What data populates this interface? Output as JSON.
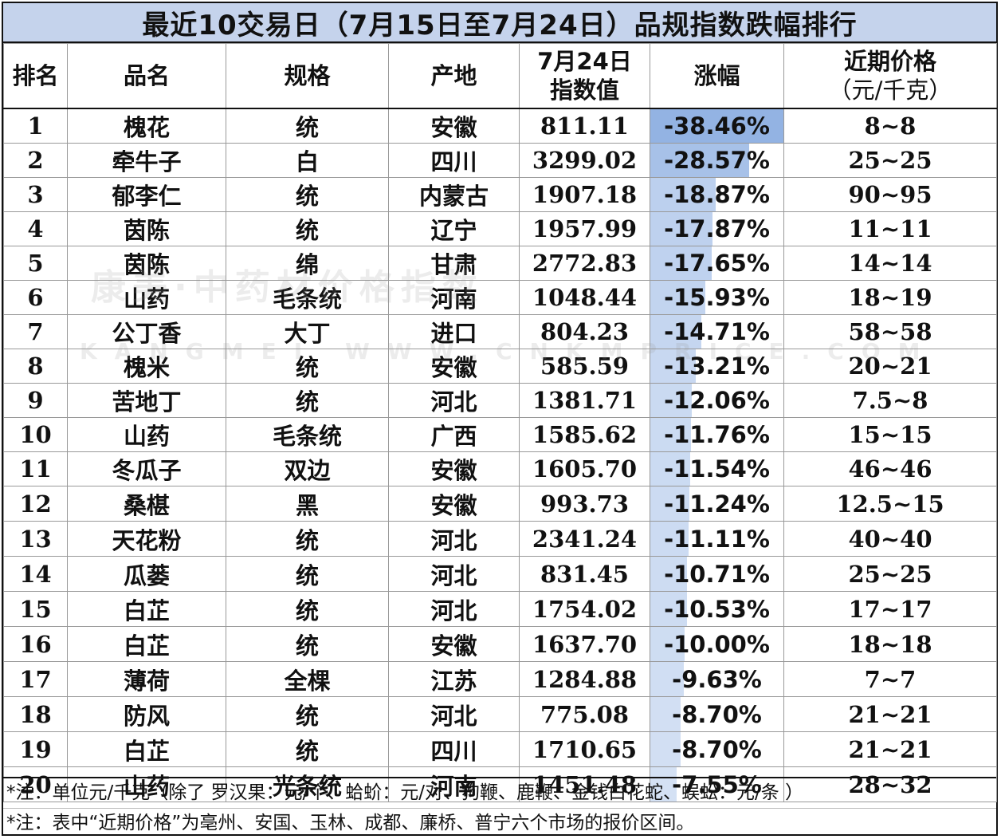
{
  "title": "最近10交易日（7月15日至7月24日）品规指数跌幅排行",
  "headers": {
    "rank": "排名",
    "name": "品名",
    "spec": "规格",
    "origin": "产地",
    "index_line1": "7月24日",
    "index_line2": "指数值",
    "change": "涨幅",
    "price_line1": "近期价格",
    "price_line2": "（元/千克）"
  },
  "rows": [
    {
      "rank": "1",
      "name": "槐花",
      "spec": "统",
      "origin": "安徽",
      "index": "811.11",
      "change": "-38.46%",
      "change_value": -38.46,
      "price": "8~8"
    },
    {
      "rank": "2",
      "name": "牵牛子",
      "spec": "白",
      "origin": "四川",
      "index": "3299.02",
      "change": "-28.57%",
      "change_value": -28.57,
      "price": "25~25"
    },
    {
      "rank": "3",
      "name": "郁李仁",
      "spec": "统",
      "origin": "内蒙古",
      "index": "1907.18",
      "change": "-18.87%",
      "change_value": -18.87,
      "price": "90~95"
    },
    {
      "rank": "4",
      "name": "茵陈",
      "spec": "统",
      "origin": "辽宁",
      "index": "1957.99",
      "change": "-17.87%",
      "change_value": -17.87,
      "price": "11~11"
    },
    {
      "rank": "5",
      "name": "茵陈",
      "spec": "绵",
      "origin": "甘肃",
      "index": "2772.83",
      "change": "-17.65%",
      "change_value": -17.65,
      "price": "14~14"
    },
    {
      "rank": "6",
      "name": "山药",
      "spec": "毛条统",
      "origin": "河南",
      "index": "1048.44",
      "change": "-15.93%",
      "change_value": -15.93,
      "price": "18~19"
    },
    {
      "rank": "7",
      "name": "公丁香",
      "spec": "大丁",
      "origin": "进口",
      "index": "804.23",
      "change": "-14.71%",
      "change_value": -14.71,
      "price": "58~58"
    },
    {
      "rank": "8",
      "name": "槐米",
      "spec": "统",
      "origin": "安徽",
      "index": "585.59",
      "change": "-13.21%",
      "change_value": -13.21,
      "price": "20~21"
    },
    {
      "rank": "9",
      "name": "苦地丁",
      "spec": "统",
      "origin": "河北",
      "index": "1381.71",
      "change": "-12.06%",
      "change_value": -12.06,
      "price": "7.5~8"
    },
    {
      "rank": "10",
      "name": "山药",
      "spec": "毛条统",
      "origin": "广西",
      "index": "1585.62",
      "change": "-11.76%",
      "change_value": -11.76,
      "price": "15~15"
    },
    {
      "rank": "11",
      "name": "冬瓜子",
      "spec": "双边",
      "origin": "安徽",
      "index": "1605.70",
      "change": "-11.54%",
      "change_value": -11.54,
      "price": "46~46"
    },
    {
      "rank": "12",
      "name": "桑椹",
      "spec": "黑",
      "origin": "安徽",
      "index": "993.73",
      "change": "-11.24%",
      "change_value": -11.24,
      "price": "12.5~15"
    },
    {
      "rank": "13",
      "name": "天花粉",
      "spec": "统",
      "origin": "河北",
      "index": "2341.24",
      "change": "-11.11%",
      "change_value": -11.11,
      "price": "40~40"
    },
    {
      "rank": "14",
      "name": "瓜蒌",
      "spec": "统",
      "origin": "河北",
      "index": "831.45",
      "change": "-10.71%",
      "change_value": -10.71,
      "price": "25~25"
    },
    {
      "rank": "15",
      "name": "白芷",
      "spec": "统",
      "origin": "河北",
      "index": "1754.02",
      "change": "-10.53%",
      "change_value": -10.53,
      "price": "17~17"
    },
    {
      "rank": "16",
      "name": "白芷",
      "spec": "统",
      "origin": "安徽",
      "index": "1637.70",
      "change": "-10.00%",
      "change_value": -10.0,
      "price": "18~18"
    },
    {
      "rank": "17",
      "name": "薄荷",
      "spec": "全棵",
      "origin": "江苏",
      "index": "1284.88",
      "change": "-9.63%",
      "change_value": -9.63,
      "price": "7~7"
    },
    {
      "rank": "18",
      "name": "防风",
      "spec": "统",
      "origin": "河北",
      "index": "775.08",
      "change": "-8.70%",
      "change_value": -8.7,
      "price": "21~21"
    },
    {
      "rank": "19",
      "name": "白芷",
      "spec": "统",
      "origin": "四川",
      "index": "1710.65",
      "change": "-8.70%",
      "change_value": -8.7,
      "price": "21~21"
    },
    {
      "rank": "20",
      "name": "山药",
      "spec": "光条统",
      "origin": "河南",
      "index": "1451.48",
      "change": "-7.55%",
      "change_value": -7.55,
      "price": "28~32"
    }
  ],
  "data_bar_color": "#93b3e3",
  "title_bg_color": "#c5d3ec",
  "notes": [
    "*注：单位元/千克（除了 罗汉果：元/个、蛤蚧：元/对、狗鞭、鹿鞭、金钱白花蛇、蜈蚣：元/条 ）",
    "*注：表中“近期价格”为亳州、安国、玉林、成都、廉桥、普宁六个市场的报价区间。"
  ],
  "watermark": {
    "line1": "康美·中药材价格指数",
    "line2": "KANGMEI WWW.CNKMPRICE.COM"
  }
}
